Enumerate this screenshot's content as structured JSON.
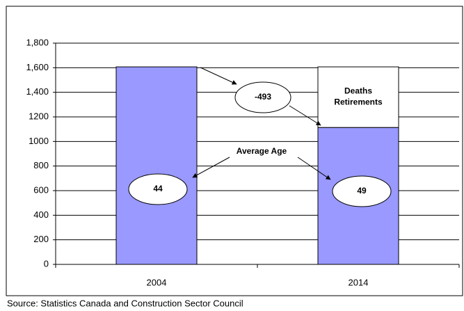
{
  "chart_data": {
    "type": "bar",
    "categories": [
      "2004",
      "2014"
    ],
    "series": [
      {
        "color": "#9999ff",
        "values": [
          1607,
          1114
        ]
      },
      {
        "name": "Deaths Retirements",
        "color": "#ffffff",
        "values": [
          null,
          493
        ]
      }
    ],
    "ylim": [
      0,
      1800
    ],
    "yticks": [
      0,
      200,
      400,
      600,
      800,
      1000,
      1200,
      {
        "value": 1400,
        "label": "1,400"
      },
      {
        "value": 1600,
        "label": "1,600"
      },
      {
        "value": 1800,
        "label": "1,800"
      }
    ],
    "grid": true,
    "change_label": "-493",
    "average_age_label": "Average Age",
    "average_age": [
      44,
      49
    ],
    "source": "Source:  Statistics Canada and Construction Sector Council"
  }
}
